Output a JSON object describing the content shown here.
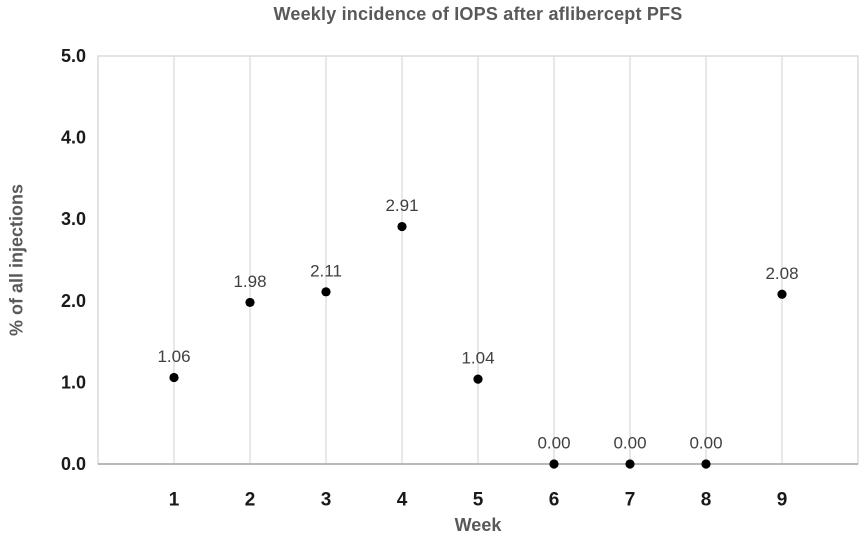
{
  "chart_data": {
    "type": "scatter",
    "title": "Weekly incidence of IOPS after aflibercept PFS",
    "xlabel": "Week",
    "ylabel": "% of all injections",
    "categories": [
      1,
      2,
      3,
      4,
      5,
      6,
      7,
      8,
      9
    ],
    "values": [
      1.06,
      1.98,
      2.11,
      2.91,
      1.04,
      0.0,
      0.0,
      0.0,
      2.08
    ],
    "data_labels": [
      "1.06",
      "1.98",
      "2.11",
      "2.91",
      "1.04",
      "0.00",
      "0.00",
      "0.00",
      "2.08"
    ],
    "x_tick_labels": [
      "1",
      "2",
      "3",
      "4",
      "5",
      "6",
      "7",
      "8",
      "9"
    ],
    "y_tick_labels": [
      "0.0",
      "1.0",
      "2.0",
      "3.0",
      "4.0",
      "5.0"
    ],
    "y_tick_values": [
      0,
      1,
      2,
      3,
      4,
      5
    ],
    "xlim": [
      0,
      10
    ],
    "ylim": [
      0,
      5
    ],
    "grid": "vertical-only",
    "legend": "none",
    "marker": "filled-circle",
    "colors": {
      "background": "#ffffff",
      "point": "#000000",
      "gridline": "#d9d9d9",
      "plot_border": "#d9d9d9",
      "axis_line": "#a6a6a6",
      "tick_label": "#1a1a1a",
      "data_label": "#404040",
      "title": "#595959",
      "axis_title": "#595959"
    }
  }
}
